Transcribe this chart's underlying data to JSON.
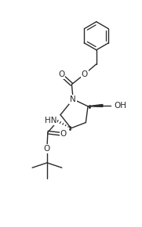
{
  "background_color": "#ffffff",
  "figsize": [
    1.81,
    2.9
  ],
  "dpi": 100,
  "line_color": "#2a2a2a",
  "line_width": 1.0,
  "font_size": 7.0,
  "xlim": [
    0,
    10
  ],
  "ylim": [
    0,
    16
  ]
}
